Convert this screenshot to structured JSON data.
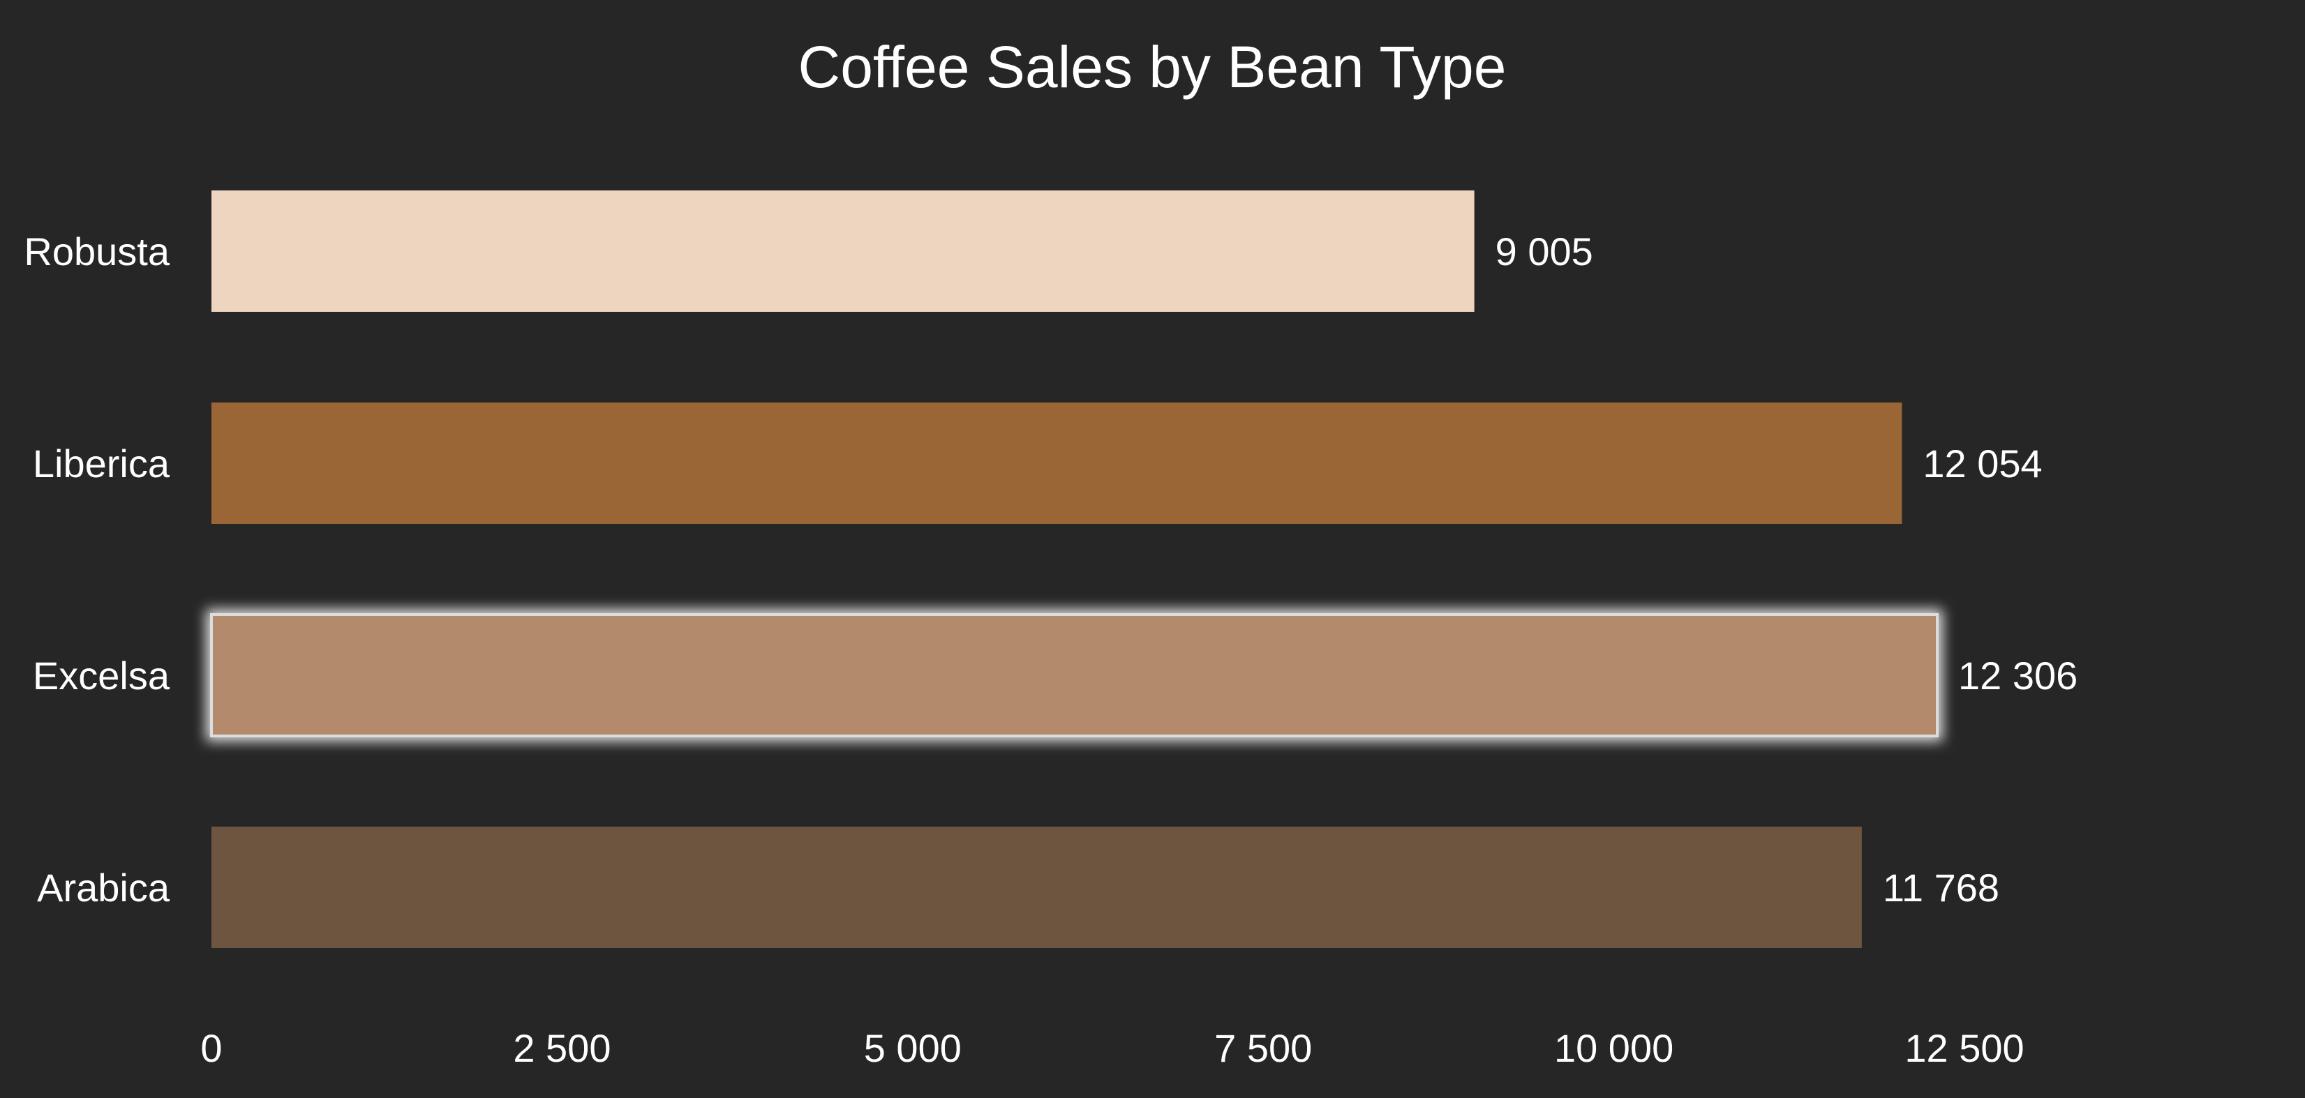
{
  "chart_data": {
    "type": "bar",
    "orientation": "horizontal",
    "title": "Coffee Sales by Bean Type",
    "xlabel": "",
    "ylabel": "",
    "categories": [
      "Robusta",
      "Liberica",
      "Excelsa",
      "Arabica"
    ],
    "values": [
      9005,
      12054,
      12306,
      11768
    ],
    "data_labels": [
      "9 005",
      "12 054",
      "12 306",
      "11 768"
    ],
    "bar_colors": [
      "#EDD5BF",
      "#9A6635",
      "#B48A6C",
      "#6E5540"
    ],
    "highlighted_category": "Excelsa",
    "highlight_glow_color": "#DDDDDD",
    "xlim": [
      0,
      15000
    ],
    "x_ticks": [
      0,
      2500,
      5000,
      7500,
      10000,
      12500
    ],
    "x_tick_labels": [
      "0",
      "2 500",
      "5 000",
      "7 500",
      "10 000",
      "12 500"
    ],
    "grid": false,
    "legend": "none",
    "background_color": "#262626",
    "text_color": "#FFFFFF"
  }
}
